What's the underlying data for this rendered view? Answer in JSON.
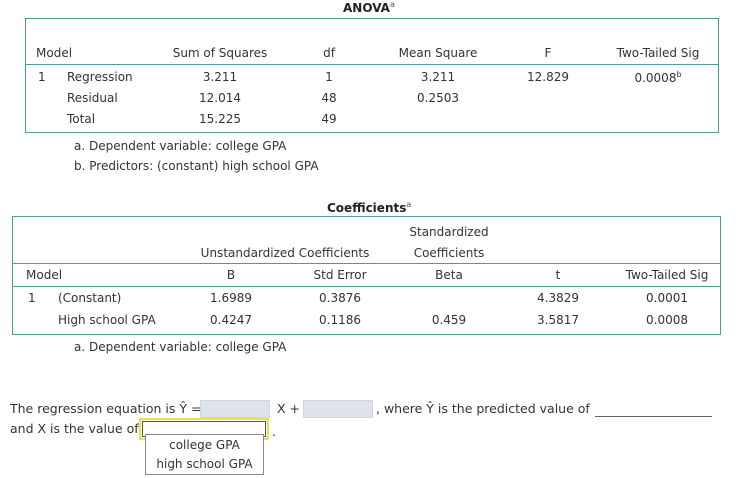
{
  "anova": {
    "title": "ANOVA",
    "title_sup": "a",
    "headers": [
      "Model",
      "Sum of Squares",
      "df",
      "Mean Square",
      "F",
      "Two-Tailed Sig"
    ],
    "model_num": "1",
    "rows": [
      {
        "label": "Regression",
        "ss": "3.211",
        "df": "1",
        "ms": "3.211",
        "f": "12.829",
        "sig": "0.0008",
        "sig_sup": "b"
      },
      {
        "label": "Residual",
        "ss": "12.014",
        "df": "48",
        "ms": "0.2503",
        "f": "",
        "sig": ""
      },
      {
        "label": "Total",
        "ss": "15.225",
        "df": "49",
        "ms": "",
        "f": "",
        "sig": ""
      }
    ],
    "notes": [
      "a. Dependent variable: college GPA",
      "b. Predictors: (constant) high school GPA"
    ]
  },
  "coefficients": {
    "title": "Coefficients",
    "title_sup": "a",
    "group_unstd": "Unstandardized Coefficients",
    "group_std_line1": "Standardized",
    "group_std_line2": "Coefficients",
    "headers": [
      "Model",
      "B",
      "Std Error",
      "Beta",
      "t",
      "Two-Tailed Sig"
    ],
    "model_num": "1",
    "rows": [
      {
        "label": "(Constant)",
        "b": "1.6989",
        "se": "0.3876",
        "beta": "",
        "t": "4.3829",
        "sig": "0.0001"
      },
      {
        "label": "High school GPA",
        "b": "0.4247",
        "se": "0.1186",
        "beta": "0.459",
        "t": "3.5817",
        "sig": "0.0008"
      }
    ],
    "note": "a. Dependent variable: college GPA"
  },
  "question": {
    "part1": "The regression equation is Ŷ =",
    "part2": "X +",
    "part3": ", where Ŷ is the predicted value of",
    "part4": "and X is the value of",
    "period": ".",
    "blank1_value": "",
    "blank2_value": "",
    "blank3_value": "",
    "dropdown_selected": "",
    "dropdown_options": [
      "college GPA",
      "high school GPA"
    ]
  },
  "colors": {
    "frame": "#4c9a9a",
    "blank_fill": "#dde3e8",
    "focus_outline": "#e8e34a"
  }
}
